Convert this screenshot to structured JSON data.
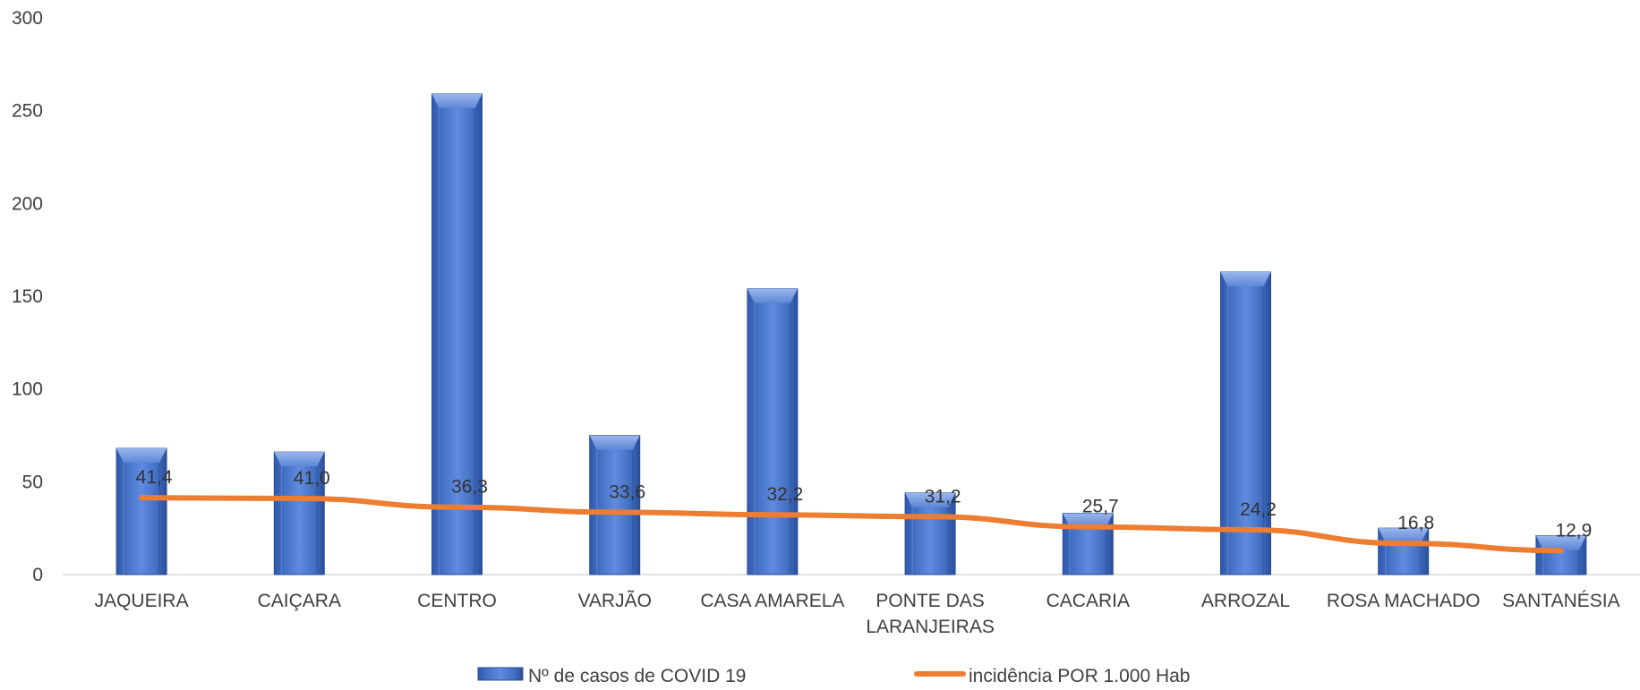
{
  "chart_data": {
    "type": "bar",
    "categories": [
      [
        "JAQUEIRA"
      ],
      [
        "CAIÇARA"
      ],
      [
        "CENTRO"
      ],
      [
        "VARJÃO"
      ],
      [
        "CASA AMARELA"
      ],
      [
        "PONTE DAS",
        "LARANJEIRAS"
      ],
      [
        "CACARIA"
      ],
      [
        "ARROZAL"
      ],
      [
        "ROSA MACHADO"
      ],
      [
        "SANTANÉSIA"
      ]
    ],
    "series": [
      {
        "name": "Nº de casos de COVID 19",
        "type": "bar",
        "color": "#4472C4",
        "values": [
          68,
          66,
          259,
          75,
          154,
          44,
          33,
          163,
          25,
          21
        ]
      },
      {
        "name": "incidência POR 1.000 Hab",
        "type": "line",
        "color": "#ED7D31",
        "values": [
          41.4,
          41.0,
          36.3,
          33.6,
          32.2,
          31.2,
          25.7,
          24.2,
          16.8,
          12.9
        ],
        "labels": [
          "41,4",
          "41,0",
          "36,3",
          "33,6",
          "32,2",
          "31,2",
          "25,7",
          "24,2",
          "16,8",
          "12,9"
        ]
      }
    ],
    "ylim": [
      0,
      300
    ],
    "yticks": [
      "0",
      "50",
      "100",
      "150",
      "200",
      "250",
      "300"
    ],
    "grid": false,
    "legend": "bottom"
  }
}
